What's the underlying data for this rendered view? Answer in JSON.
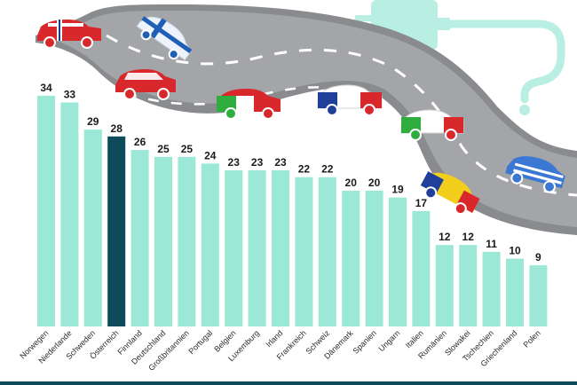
{
  "chart_data": {
    "type": "bar",
    "categories": [
      "Norwegen",
      "Niederlande",
      "Schweden",
      "Österreich",
      "Finnland",
      "Deutschland",
      "Großbritannien",
      "Portugal",
      "Belgien",
      "Luxemburg",
      "Irland",
      "Frankreich",
      "Schweiz",
      "Dänemark",
      "Spanien",
      "Ungarn",
      "Italien",
      "Rumänien",
      "Slowakei",
      "Tschechien",
      "Griechenland",
      "Polen"
    ],
    "values": [
      34,
      33,
      29,
      28,
      26,
      25,
      25,
      24,
      23,
      23,
      23,
      22,
      22,
      20,
      20,
      19,
      17,
      12,
      12,
      11,
      10,
      9
    ],
    "highlight_category": "Österreich",
    "ylim": [
      0,
      35
    ],
    "grid": false,
    "legend": "none",
    "title": "",
    "xlabel": "",
    "ylabel": ""
  },
  "colors": {
    "bar": "#9be8d6",
    "bar_highlight": "#0d4a5a",
    "road": "#a4a5a8",
    "road_edge": "#8a8b8e",
    "road_dash": "#ffffff",
    "plug": "#b8efe2",
    "bottom_rule": "#0d4a5a"
  },
  "illustration": {
    "road": "curved-road-graphic",
    "plug": "charging-plug-icon",
    "question_mark": "question-mark-icon",
    "cars": [
      "car-norway-flag",
      "car-finland-flag",
      "car-denmark-flag",
      "car-italy-flag",
      "car-france-flag",
      "car-italy-flag-2",
      "car-romania-flag",
      "car-greece-flag"
    ]
  }
}
